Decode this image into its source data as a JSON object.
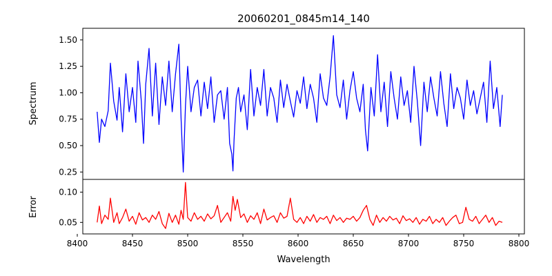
{
  "chart_data": {
    "type": "line",
    "title": "20060201_0845m14_140",
    "xlabel": "Wavelength",
    "xlim": [
      8405,
      8805
    ],
    "xticks": [
      8400,
      8450,
      8500,
      8550,
      8600,
      8650,
      8700,
      8750,
      8800
    ],
    "panels": [
      {
        "ylabel": "Spectrum",
        "ylim": [
          0.18,
          1.61
        ],
        "yticks": [
          0.25,
          0.5,
          0.75,
          1.0,
          1.25,
          1.5
        ],
        "ytick_labels": [
          "0.25",
          "0.50",
          "0.75",
          "1.00",
          "1.25",
          "1.50"
        ],
        "series": [
          {
            "color": "#0000ff",
            "x": [
              8418,
              8420,
              8422,
              8425,
              8428,
              8430,
              8433,
              8436,
              8438,
              8441,
              8444,
              8447,
              8450,
              8453,
              8455,
              8458,
              8460,
              8462,
              8465,
              8468,
              8471,
              8474,
              8477,
              8480,
              8483,
              8486,
              8489,
              8492,
              8494,
              8496,
              8498,
              8500,
              8503,
              8506,
              8509,
              8512,
              8515,
              8518,
              8521,
              8524,
              8527,
              8530,
              8533,
              8536,
              8538,
              8540,
              8541,
              8542,
              8544,
              8546,
              8548,
              8551,
              8554,
              8557,
              8560,
              8563,
              8566,
              8569,
              8572,
              8575,
              8578,
              8581,
              8584,
              8587,
              8590,
              8593,
              8596,
              8599,
              8602,
              8605,
              8608,
              8611,
              8614,
              8617,
              8620,
              8623,
              8626,
              8629,
              8632,
              8635,
              8638,
              8641,
              8644,
              8647,
              8650,
              8653,
              8656,
              8659,
              8661,
              8663,
              8666,
              8669,
              8672,
              8675,
              8678,
              8681,
              8684,
              8687,
              8690,
              8693,
              8696,
              8699,
              8702,
              8705,
              8708,
              8711,
              8714,
              8717,
              8720,
              8723,
              8726,
              8729,
              8732,
              8735,
              8738,
              8741,
              8744,
              8747,
              8750,
              8753,
              8756,
              8759,
              8762,
              8765,
              8768,
              8771,
              8774,
              8777,
              8780,
              8783,
              8785
            ],
            "y": [
              0.82,
              0.53,
              0.75,
              0.68,
              0.83,
              1.28,
              0.92,
              0.74,
              1.05,
              0.63,
              1.18,
              0.82,
              1.05,
              0.72,
              1.3,
              0.92,
              0.52,
              1.08,
              1.42,
              0.78,
              1.28,
              0.7,
              1.15,
              0.88,
              1.3,
              0.82,
              1.18,
              1.46,
              0.76,
              0.25,
              0.88,
              1.25,
              0.82,
              1.05,
              1.12,
              0.78,
              1.1,
              0.85,
              1.15,
              0.72,
              0.98,
              1.02,
              0.75,
              1.05,
              0.52,
              0.42,
              0.26,
              0.55,
              0.95,
              1.05,
              0.82,
              0.98,
              0.65,
              1.22,
              0.78,
              1.05,
              0.88,
              1.22,
              0.78,
              1.05,
              0.95,
              0.72,
              1.12,
              0.86,
              1.08,
              0.92,
              0.77,
              1.02,
              0.9,
              1.15,
              0.85,
              1.08,
              0.95,
              0.72,
              1.18,
              0.95,
              0.88,
              1.15,
              1.54,
              0.98,
              0.86,
              1.12,
              0.75,
              1.02,
              1.2,
              0.95,
              0.82,
              1.08,
              0.65,
              0.45,
              1.05,
              0.78,
              1.36,
              0.82,
              1.1,
              0.68,
              1.2,
              0.95,
              0.75,
              1.15,
              0.88,
              1.02,
              0.72,
              1.25,
              0.92,
              0.5,
              1.1,
              0.82,
              1.15,
              0.95,
              0.78,
              1.2,
              0.9,
              0.68,
              1.18,
              0.85,
              1.05,
              0.95,
              0.75,
              1.12,
              0.88,
              1.02,
              0.8,
              0.95,
              1.1,
              0.72,
              1.3,
              0.85,
              1.05,
              0.68,
              0.98
            ]
          }
        ]
      },
      {
        "ylabel": "Error",
        "ylim": [
          0.031,
          0.121
        ],
        "yticks": [
          0.05,
          0.1
        ],
        "ytick_labels": [
          "0.05",
          "0.10"
        ],
        "series": [
          {
            "color": "#ff0000",
            "x": [
              8418,
              8420,
              8422,
              8425,
              8428,
              8430,
              8433,
              8436,
              8438,
              8441,
              8444,
              8447,
              8450,
              8453,
              8456,
              8459,
              8462,
              8465,
              8468,
              8471,
              8474,
              8477,
              8480,
              8483,
              8486,
              8489,
              8492,
              8494,
              8496,
              8498,
              8500,
              8503,
              8506,
              8509,
              8512,
              8515,
              8518,
              8521,
              8524,
              8527,
              8530,
              8533,
              8536,
              8539,
              8541,
              8543,
              8545,
              8548,
              8551,
              8554,
              8557,
              8560,
              8563,
              8566,
              8569,
              8572,
              8575,
              8578,
              8581,
              8584,
              8587,
              8590,
              8593,
              8596,
              8599,
              8602,
              8605,
              8608,
              8611,
              8614,
              8617,
              8620,
              8623,
              8626,
              8629,
              8632,
              8635,
              8638,
              8641,
              8644,
              8647,
              8650,
              8653,
              8656,
              8659,
              8662,
              8665,
              8668,
              8671,
              8674,
              8677,
              8680,
              8683,
              8686,
              8689,
              8692,
              8695,
              8698,
              8701,
              8704,
              8707,
              8710,
              8713,
              8716,
              8719,
              8722,
              8725,
              8728,
              8731,
              8734,
              8737,
              8740,
              8743,
              8746,
              8749,
              8752,
              8755,
              8758,
              8761,
              8764,
              8767,
              8770,
              8773,
              8776,
              8779,
              8782,
              8785
            ],
            "y": [
              0.05,
              0.077,
              0.048,
              0.062,
              0.055,
              0.09,
              0.05,
              0.066,
              0.048,
              0.058,
              0.072,
              0.052,
              0.06,
              0.047,
              0.066,
              0.054,
              0.058,
              0.05,
              0.062,
              0.055,
              0.068,
              0.048,
              0.04,
              0.065,
              0.05,
              0.062,
              0.047,
              0.07,
              0.055,
              0.116,
              0.058,
              0.052,
              0.066,
              0.055,
              0.06,
              0.052,
              0.064,
              0.056,
              0.061,
              0.078,
              0.05,
              0.058,
              0.066,
              0.052,
              0.093,
              0.07,
              0.088,
              0.058,
              0.064,
              0.05,
              0.061,
              0.055,
              0.066,
              0.048,
              0.072,
              0.054,
              0.058,
              0.061,
              0.05,
              0.066,
              0.057,
              0.06,
              0.09,
              0.055,
              0.05,
              0.058,
              0.048,
              0.06,
              0.052,
              0.063,
              0.05,
              0.058,
              0.055,
              0.06,
              0.048,
              0.062,
              0.053,
              0.058,
              0.05,
              0.057,
              0.055,
              0.06,
              0.052,
              0.058,
              0.07,
              0.078,
              0.055,
              0.045,
              0.062,
              0.05,
              0.058,
              0.052,
              0.06,
              0.054,
              0.057,
              0.048,
              0.061,
              0.053,
              0.056,
              0.05,
              0.058,
              0.047,
              0.055,
              0.052,
              0.06,
              0.048,
              0.055,
              0.05,
              0.058,
              0.045,
              0.052,
              0.058,
              0.062,
              0.048,
              0.05,
              0.075,
              0.055,
              0.052,
              0.06,
              0.048,
              0.055,
              0.062,
              0.05,
              0.058,
              0.045,
              0.052,
              0.05
            ]
          }
        ]
      }
    ],
    "grid": false,
    "legend": "none"
  }
}
